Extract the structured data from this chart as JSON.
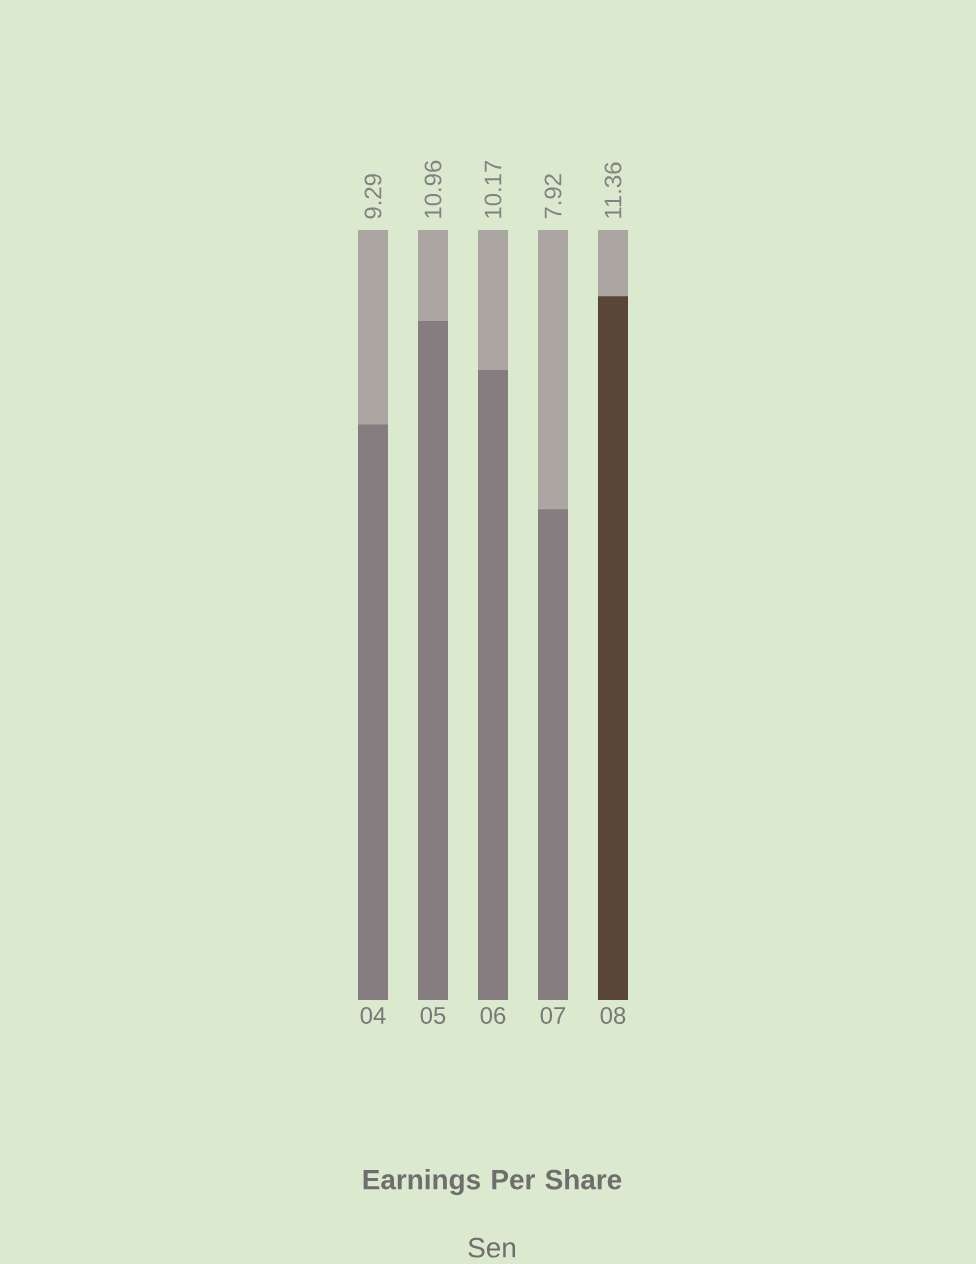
{
  "chart_data": {
    "type": "bar",
    "title": "Earnings Per Share",
    "subtitle": "Sen",
    "categories": [
      "04",
      "05",
      "06",
      "07",
      "08"
    ],
    "values": [
      9.29,
      10.96,
      10.17,
      7.92,
      11.36
    ],
    "colors": [
      "#857d80",
      "#857d80",
      "#857d80",
      "#857d80",
      "#5a4636"
    ],
    "value_labels": [
      "9.29",
      "10.96",
      "10.17",
      "7.92",
      "11.36"
    ],
    "tick_labels": "x"
  }
}
